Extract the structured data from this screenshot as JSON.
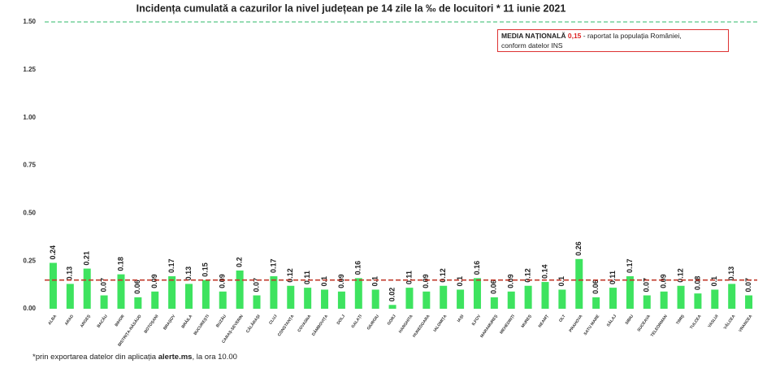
{
  "chart_data": {
    "type": "bar",
    "title": "Incidența cumulată a cazurilor la nivel județean pe 14 zile la ‰ de locuitori *  11 iunie 2021",
    "categories": [
      "ALBA",
      "ARAD",
      "ARGEȘ",
      "BACĂU",
      "BIHOR",
      "BISTRIȚA-NĂSĂUD",
      "BOTOȘANI",
      "BRAȘOV",
      "BRĂILA",
      "BUCUREȘTI",
      "BUZĂU",
      "CARAȘ-SEVERIN",
      "CĂLĂRAȘI",
      "CLUJ",
      "CONSTANȚA",
      "COVASNA",
      "DÂMBOVIȚA",
      "DOLJ",
      "GALAȚI",
      "GIURGIU",
      "GORJ",
      "HARGHITA",
      "HUNEDOARA",
      "IALOMIȚA",
      "IAȘI",
      "ILFOV",
      "MARAMUREȘ",
      "MEHEDINȚI",
      "MUREȘ",
      "NEAMȚ",
      "OLT",
      "PRAHOVA",
      "SATU MARE",
      "SĂLAJ",
      "SIBIU",
      "SUCEAVA",
      "TELEORMAN",
      "TIMIȘ",
      "TULCEA",
      "VASLUI",
      "VÂLCEA",
      "VRANCEA"
    ],
    "values": [
      0.24,
      0.13,
      0.21,
      0.07,
      0.18,
      0.06,
      0.09,
      0.17,
      0.13,
      0.15,
      0.09,
      0.2,
      0.07,
      0.17,
      0.12,
      0.11,
      0.1,
      0.09,
      0.16,
      0.1,
      0.02,
      0.11,
      0.09,
      0.12,
      0.1,
      0.16,
      0.06,
      0.09,
      0.12,
      0.14,
      0.1,
      0.26,
      0.06,
      0.11,
      0.17,
      0.07,
      0.09,
      0.12,
      0.08,
      0.1,
      0.13,
      0.07
    ],
    "color": "#3ee35f",
    "ylim": [
      0,
      1.5
    ],
    "yticks": [
      {
        "value": 0,
        "label": "0.00"
      },
      {
        "value": 0.25,
        "label": "0.25"
      },
      {
        "value": 0.5,
        "label": "0.50"
      },
      {
        "value": 0.75,
        "label": "0.75"
      },
      {
        "value": 1,
        "label": "1.00"
      },
      {
        "value": 1.25,
        "label": "1.25"
      },
      {
        "value": 1.5,
        "label": "1.50"
      }
    ],
    "top_line_color": "#2eb86a",
    "reference_line": {
      "value": 0.15,
      "label": "0,15",
      "color": "#c0392b"
    },
    "annotation": {
      "title": "MEDIA NAȚIONALĂ",
      "text": "- raportat la populația României,",
      "text2": "conform datelor INS"
    },
    "footnote": [
      "*prin exportarea datelor din aplicația",
      "alerte.ms",
      ", la ora 10.00"
    ]
  }
}
